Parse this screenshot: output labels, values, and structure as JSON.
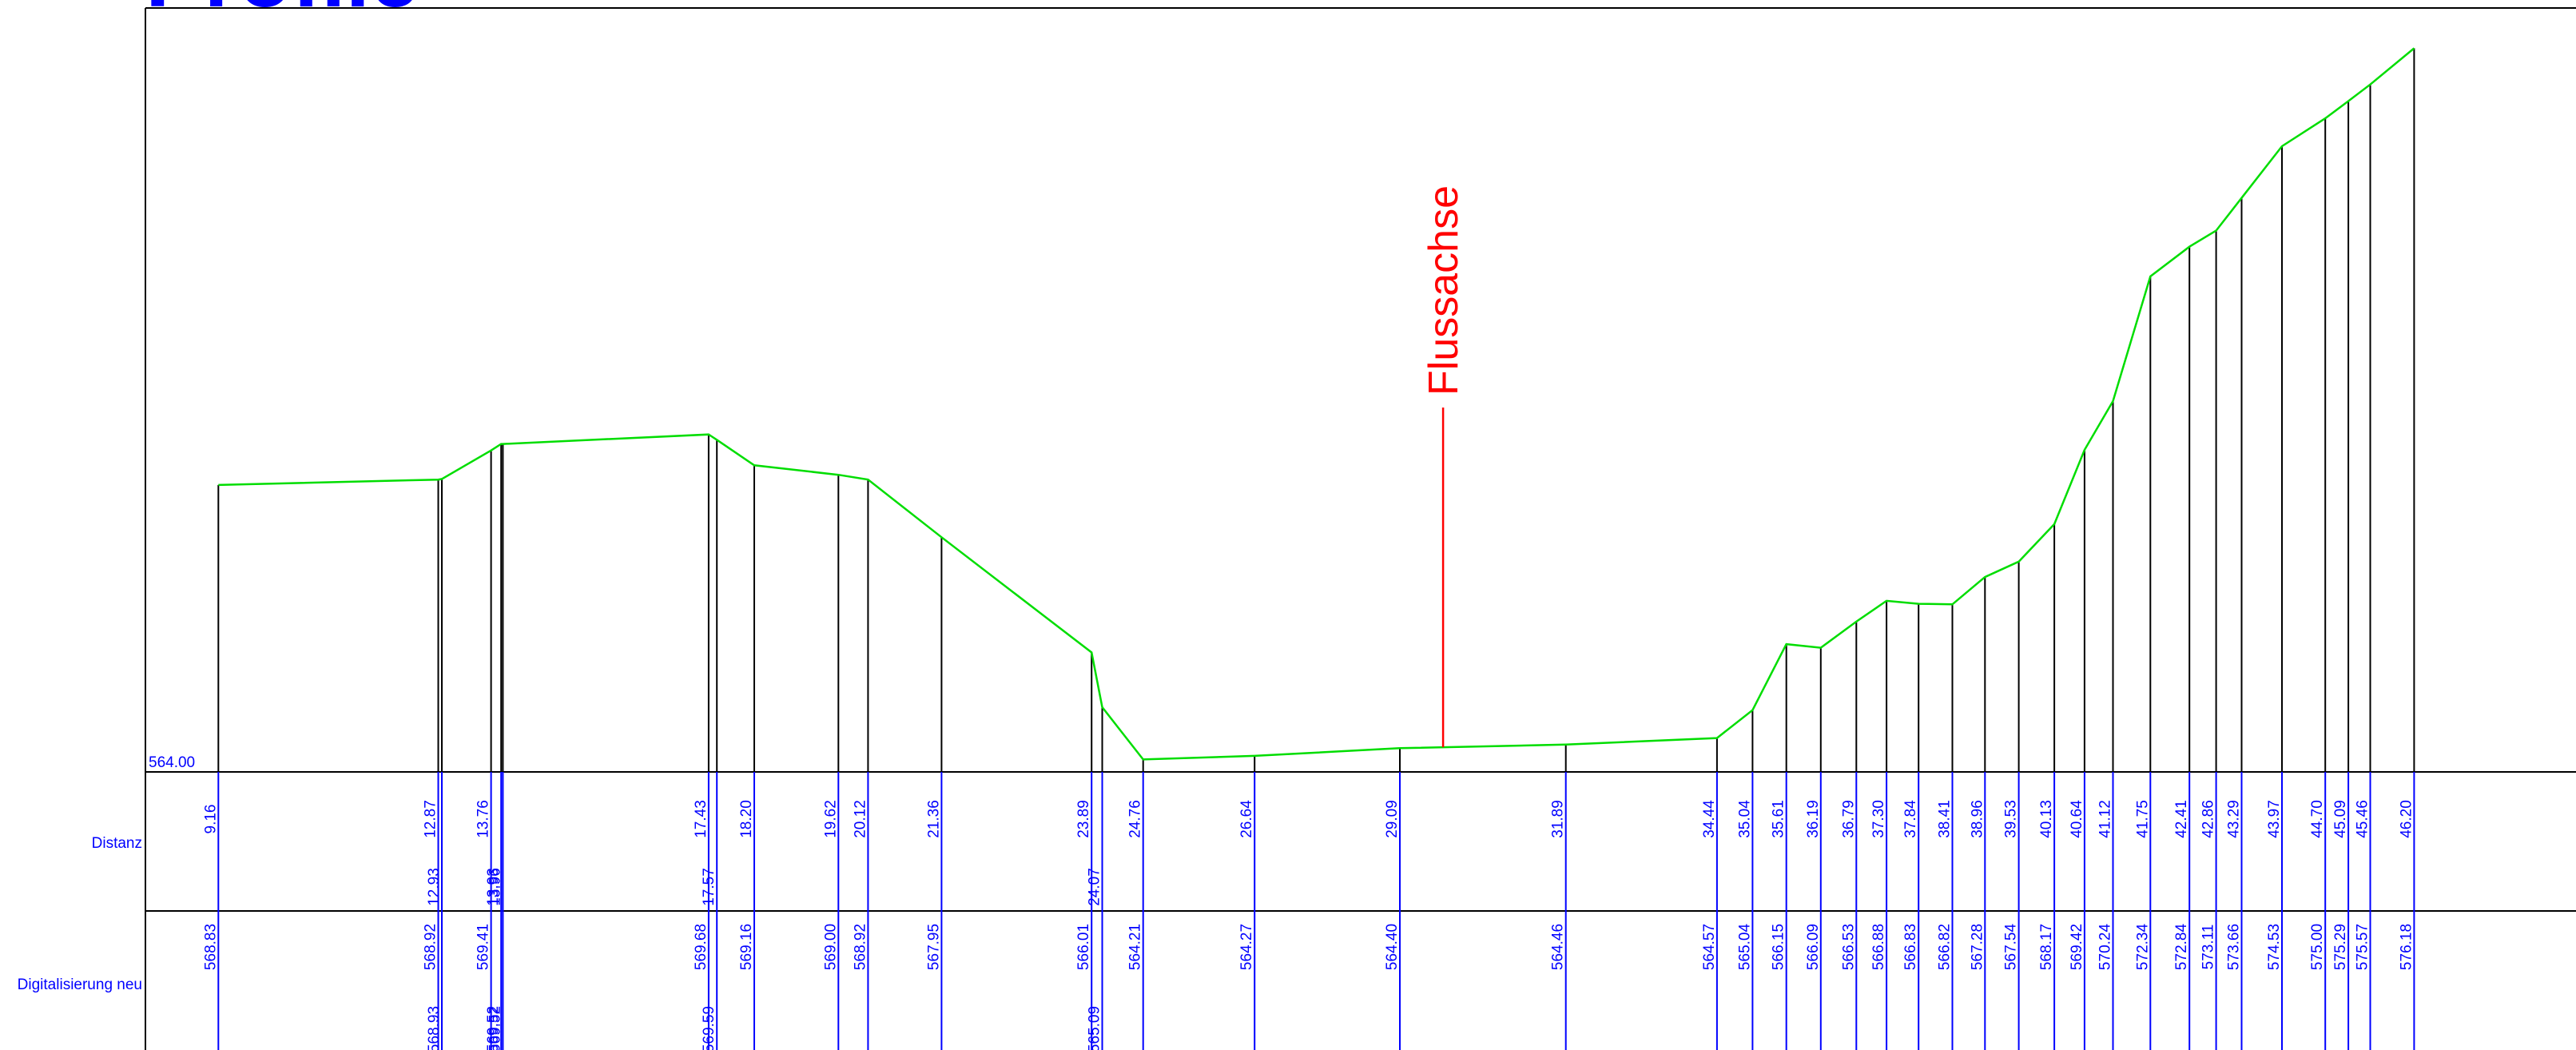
{
  "title": "Profile",
  "rows": {
    "distance_label": "Distanz",
    "elevation_label": "Digitalisierung neu"
  },
  "axis": {
    "datum_label": "564.00"
  },
  "river_axis": {
    "label": "Flussachse",
    "distance": 29.82
  },
  "colors": {
    "profile": "#00dd00",
    "river_axis": "#ff0000",
    "labels": "#0000ff",
    "stations": "#000000"
  },
  "chart_data": {
    "type": "line",
    "title": "Profile",
    "xlabel": "Distanz",
    "ylabel": "Digitalisierung neu",
    "datum": 564.0,
    "xlim": [
      7.93,
      48.93
    ],
    "ylim": [
      564.0,
      576.4
    ],
    "points": [
      {
        "d": "9.16",
        "z": "568.83"
      },
      {
        "d": "12.87",
        "z": "568.92"
      },
      {
        "d": "12.93",
        "z": "568.93"
      },
      {
        "d": "13.76",
        "z": "569.41"
      },
      {
        "d": "13.93",
        "z": "569.52"
      },
      {
        "d": "13.96",
        "z": "569.52"
      },
      {
        "d": "17.43",
        "z": "569.68"
      },
      {
        "d": "17.57",
        "z": "569.59"
      },
      {
        "d": "18.20",
        "z": "569.16"
      },
      {
        "d": "19.62",
        "z": "569.00"
      },
      {
        "d": "20.12",
        "z": "568.92"
      },
      {
        "d": "21.36",
        "z": "567.95"
      },
      {
        "d": "23.89",
        "z": "566.01"
      },
      {
        "d": "24.07",
        "z": "565.09"
      },
      {
        "d": "24.76",
        "z": "564.21"
      },
      {
        "d": "26.64",
        "z": "564.27"
      },
      {
        "d": "29.09",
        "z": "564.40"
      },
      {
        "d": "31.89",
        "z": "564.46"
      },
      {
        "d": "34.44",
        "z": "564.57"
      },
      {
        "d": "35.04",
        "z": "565.04"
      },
      {
        "d": "35.61",
        "z": "566.15"
      },
      {
        "d": "36.19",
        "z": "566.09"
      },
      {
        "d": "36.79",
        "z": "566.53"
      },
      {
        "d": "37.30",
        "z": "566.88"
      },
      {
        "d": "37.84",
        "z": "566.83"
      },
      {
        "d": "38.41",
        "z": "566.82"
      },
      {
        "d": "38.96",
        "z": "567.28"
      },
      {
        "d": "39.53",
        "z": "567.54"
      },
      {
        "d": "40.13",
        "z": "568.17"
      },
      {
        "d": "40.64",
        "z": "569.42"
      },
      {
        "d": "41.12",
        "z": "570.24"
      },
      {
        "d": "41.75",
        "z": "572.34"
      },
      {
        "d": "42.41",
        "z": "572.84"
      },
      {
        "d": "42.86",
        "z": "573.11"
      },
      {
        "d": "43.29",
        "z": "573.66"
      },
      {
        "d": "43.97",
        "z": "574.53"
      },
      {
        "d": "44.70",
        "z": "575.00"
      },
      {
        "d": "45.09",
        "z": "575.29"
      },
      {
        "d": "45.46",
        "z": "575.57"
      },
      {
        "d": "46.20",
        "z": "576.18"
      }
    ]
  }
}
